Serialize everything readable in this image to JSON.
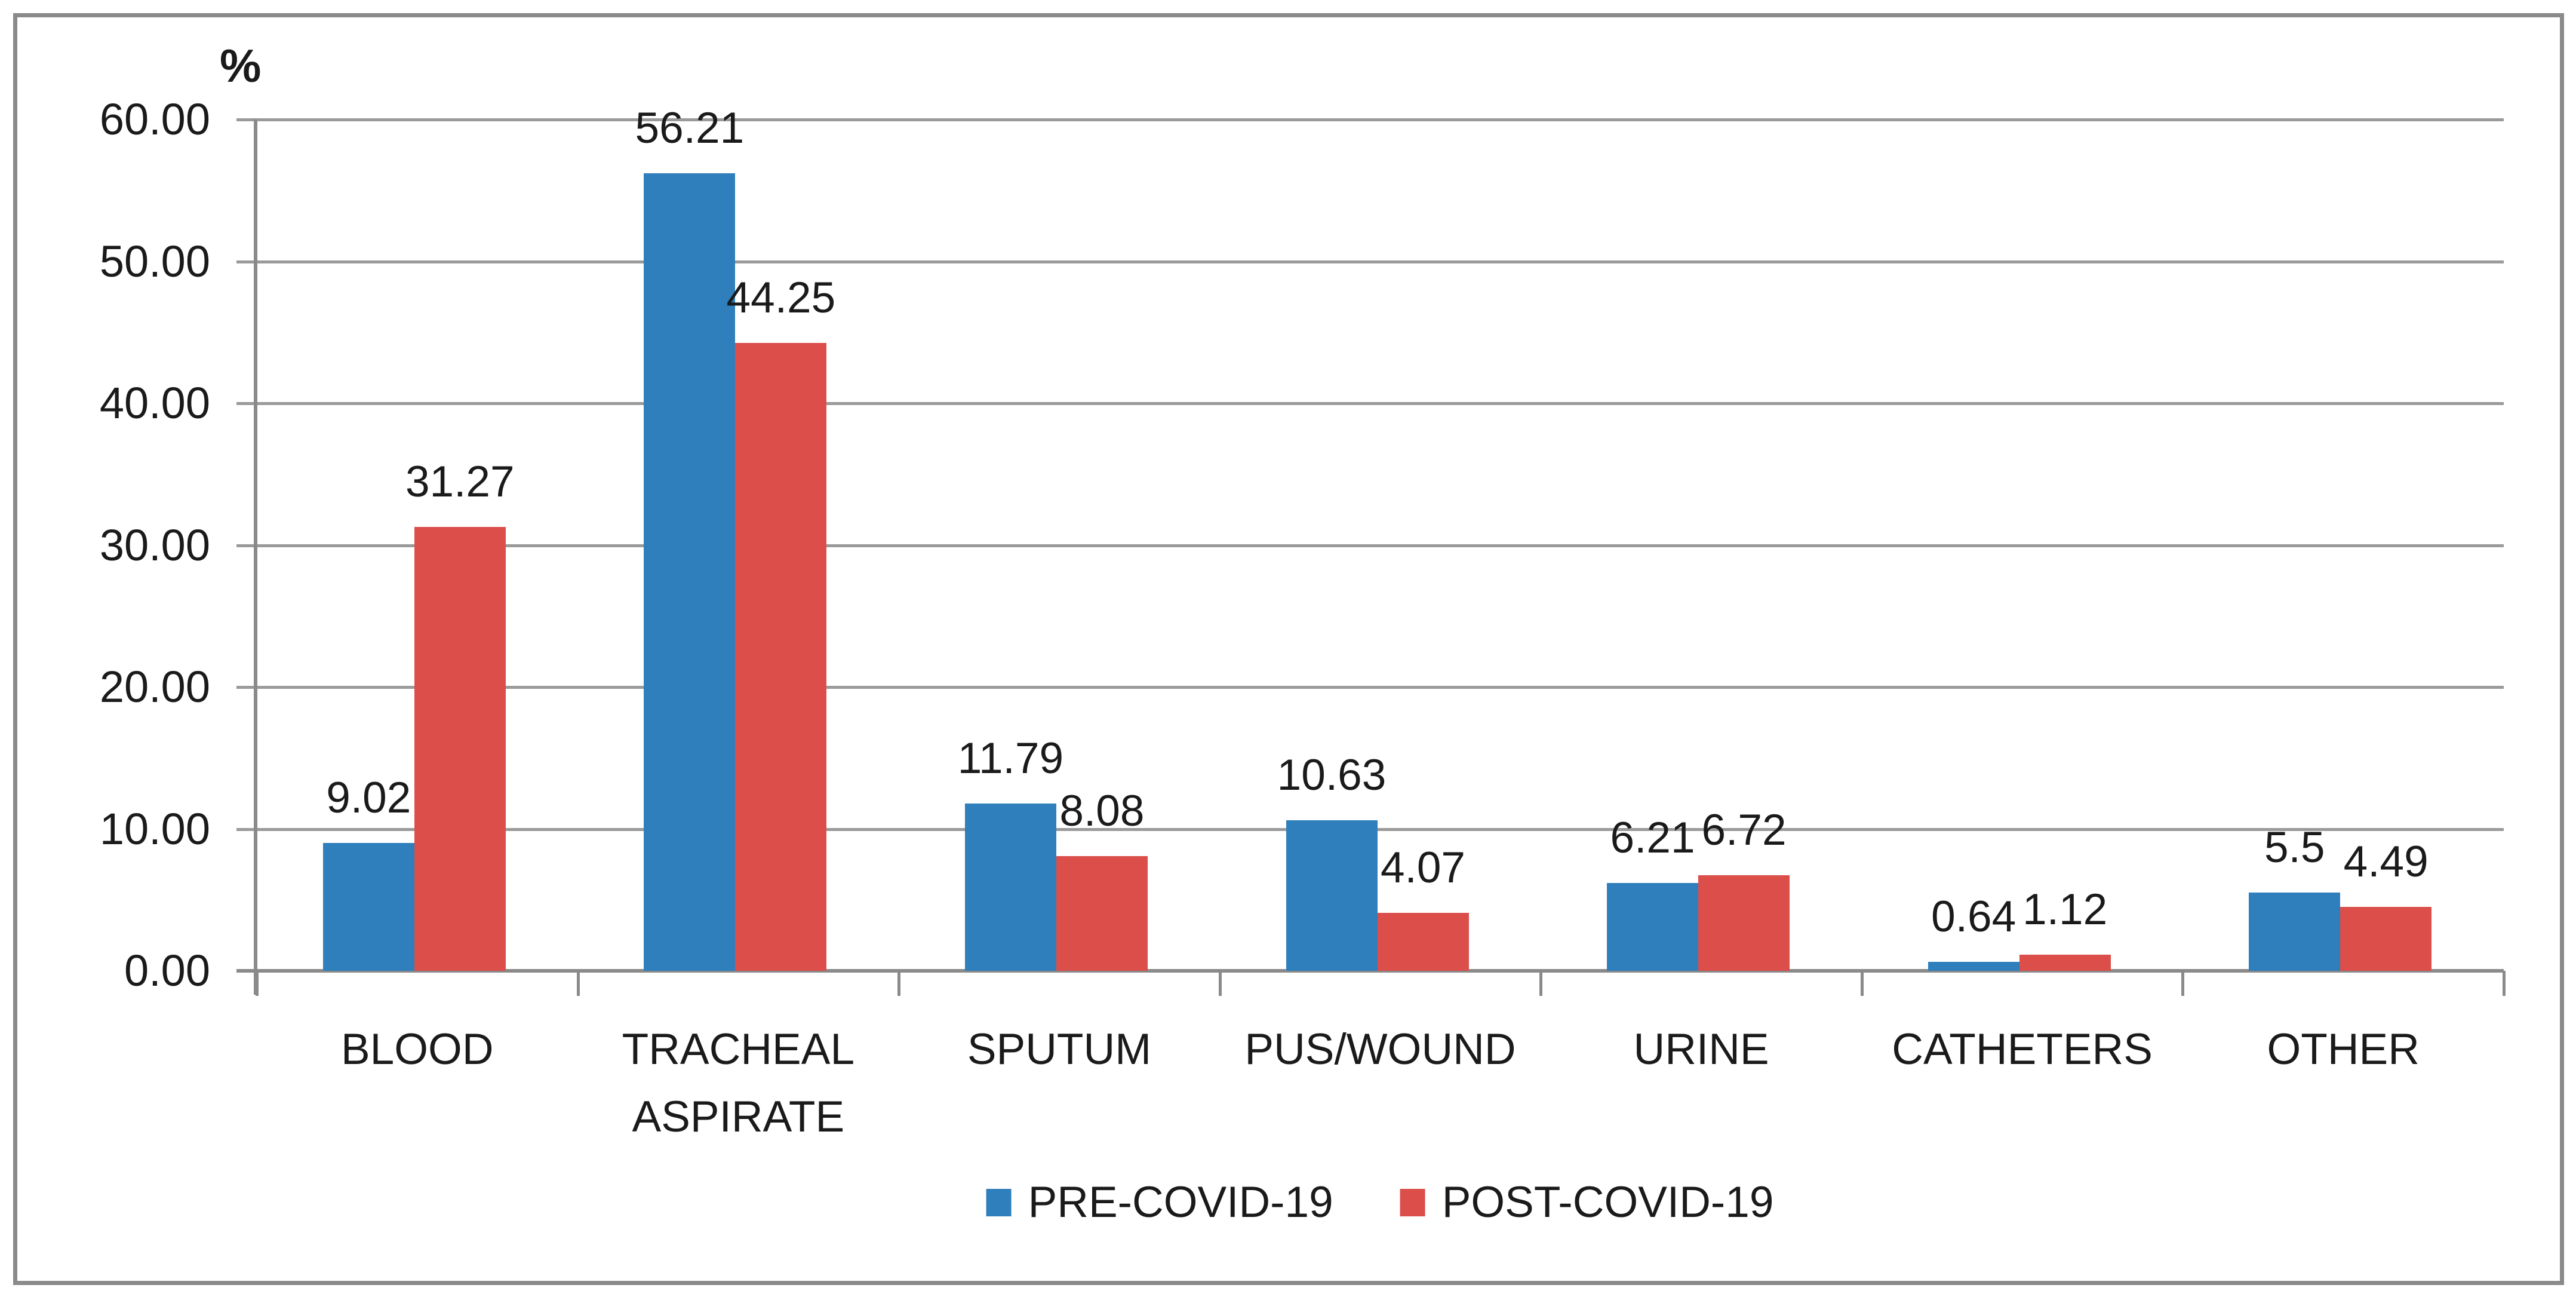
{
  "chart_data": {
    "type": "bar",
    "title": "",
    "ylabel": "%",
    "categories": [
      "BLOOD",
      "TRACHEAL ASPIRATE",
      "SPUTUM",
      "PUS/WOUND",
      "URINE",
      "CATHETERS",
      "OTHER"
    ],
    "series": [
      {
        "name": "PRE-COVID-19",
        "color": "#2E7FBC",
        "values": [
          9.02,
          56.21,
          11.79,
          10.63,
          6.21,
          0.64,
          5.5
        ],
        "value_labels": [
          "9.02",
          "56.21",
          "11.79",
          "10.63",
          "6.21",
          "0.64",
          "5.5"
        ]
      },
      {
        "name": "POST-COVID-19",
        "color": "#DB4E49",
        "values": [
          31.27,
          44.25,
          8.08,
          4.07,
          6.72,
          1.12,
          4.49
        ],
        "value_labels": [
          "31.27",
          "44.25",
          "8.08",
          "4.07",
          "6.72",
          "1.12",
          "4.49"
        ]
      }
    ],
    "y_axis": {
      "min": 0,
      "max": 60,
      "step": 10,
      "tick_labels": [
        "0.00",
        "10.00",
        "20.00",
        "30.00",
        "40.00",
        "50.00",
        "60.00"
      ]
    },
    "grid": true,
    "legend_position": "bottom",
    "colors": {
      "grid": "#9a9a9a",
      "axis": "#8a8a8a",
      "frame": "#8a8a8a",
      "text": "#1a1a1a",
      "background": "#ffffff"
    }
  }
}
